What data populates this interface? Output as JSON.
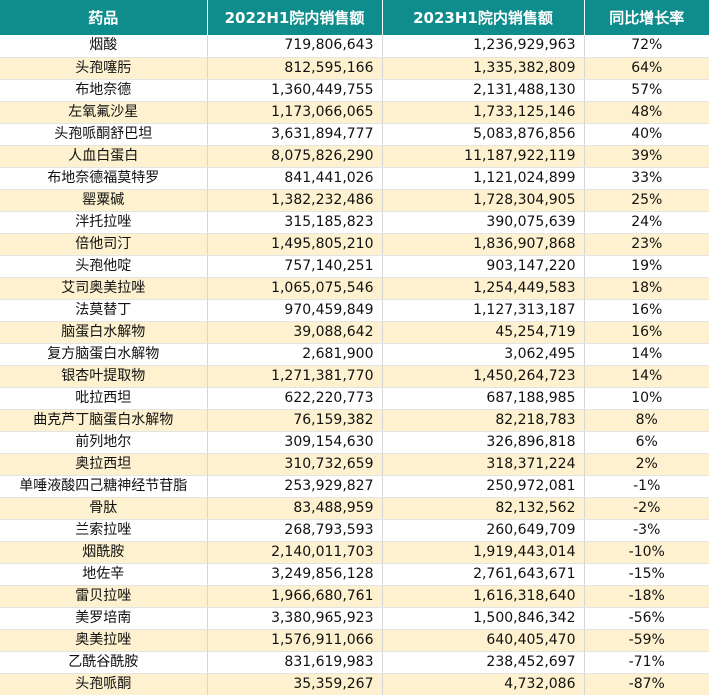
{
  "headers": {
    "drug": "药品",
    "sales_2022h1": "2022H1院内销售额",
    "sales_2023h1": "2023H1院内销售额",
    "yoy_growth": "同比增长率"
  },
  "colors": {
    "header_bg": "#0f8c8c",
    "header_text": "#ffffff",
    "row_alt_bg": "#fdf1cf",
    "row_bg": "#ffffff"
  },
  "rows": [
    {
      "drug": "烟酸",
      "h1_2022": "719,806,643",
      "h1_2023": "1,236,929,963",
      "growth": "72%"
    },
    {
      "drug": "头孢噻肟",
      "h1_2022": "812,595,166",
      "h1_2023": "1,335,382,809",
      "growth": "64%"
    },
    {
      "drug": "布地奈德",
      "h1_2022": "1,360,449,755",
      "h1_2023": "2,131,488,130",
      "growth": "57%"
    },
    {
      "drug": "左氧氟沙星",
      "h1_2022": "1,173,066,065",
      "h1_2023": "1,733,125,146",
      "growth": "48%"
    },
    {
      "drug": "头孢哌酮舒巴坦",
      "h1_2022": "3,631,894,777",
      "h1_2023": "5,083,876,856",
      "growth": "40%"
    },
    {
      "drug": "人血白蛋白",
      "h1_2022": "8,075,826,290",
      "h1_2023": "11,187,922,119",
      "growth": "39%"
    },
    {
      "drug": "布地奈德福莫特罗",
      "h1_2022": "841,441,026",
      "h1_2023": "1,121,024,899",
      "growth": "33%"
    },
    {
      "drug": "罂粟碱",
      "h1_2022": "1,382,232,486",
      "h1_2023": "1,728,304,905",
      "growth": "25%"
    },
    {
      "drug": "泮托拉唑",
      "h1_2022": "315,185,823",
      "h1_2023": "390,075,639",
      "growth": "24%"
    },
    {
      "drug": "倍他司汀",
      "h1_2022": "1,495,805,210",
      "h1_2023": "1,836,907,868",
      "growth": "23%"
    },
    {
      "drug": "头孢他啶",
      "h1_2022": "757,140,251",
      "h1_2023": "903,147,220",
      "growth": "19%"
    },
    {
      "drug": "艾司奥美拉唑",
      "h1_2022": "1,065,075,546",
      "h1_2023": "1,254,449,583",
      "growth": "18%"
    },
    {
      "drug": "法莫替丁",
      "h1_2022": "970,459,849",
      "h1_2023": "1,127,313,187",
      "growth": "16%"
    },
    {
      "drug": "脑蛋白水解物",
      "h1_2022": "39,088,642",
      "h1_2023": "45,254,719",
      "growth": "16%"
    },
    {
      "drug": "复方脑蛋白水解物",
      "h1_2022": "2,681,900",
      "h1_2023": "3,062,495",
      "growth": "14%"
    },
    {
      "drug": "银杏叶提取物",
      "h1_2022": "1,271,381,770",
      "h1_2023": "1,450,264,723",
      "growth": "14%"
    },
    {
      "drug": "吡拉西坦",
      "h1_2022": "622,220,773",
      "h1_2023": "687,188,985",
      "growth": "10%"
    },
    {
      "drug": "曲克芦丁脑蛋白水解物",
      "h1_2022": "76,159,382",
      "h1_2023": "82,218,783",
      "growth": "8%"
    },
    {
      "drug": "前列地尔",
      "h1_2022": "309,154,630",
      "h1_2023": "326,896,818",
      "growth": "6%"
    },
    {
      "drug": "奥拉西坦",
      "h1_2022": "310,732,659",
      "h1_2023": "318,371,224",
      "growth": "2%"
    },
    {
      "drug": "单唾液酸四己糖神经节苷脂",
      "h1_2022": "253,929,827",
      "h1_2023": "250,972,081",
      "growth": "-1%"
    },
    {
      "drug": "骨肽",
      "h1_2022": "83,488,959",
      "h1_2023": "82,132,562",
      "growth": "-2%"
    },
    {
      "drug": "兰索拉唑",
      "h1_2022": "268,793,593",
      "h1_2023": "260,649,709",
      "growth": "-3%"
    },
    {
      "drug": "烟酰胺",
      "h1_2022": "2,140,011,703",
      "h1_2023": "1,919,443,014",
      "growth": "-10%"
    },
    {
      "drug": "地佐辛",
      "h1_2022": "3,249,856,128",
      "h1_2023": "2,761,643,671",
      "growth": "-15%"
    },
    {
      "drug": "雷贝拉唑",
      "h1_2022": "1,966,680,761",
      "h1_2023": "1,616,318,640",
      "growth": "-18%"
    },
    {
      "drug": "美罗培南",
      "h1_2022": "3,380,965,923",
      "h1_2023": "1,500,846,342",
      "growth": "-56%"
    },
    {
      "drug": "奥美拉唑",
      "h1_2022": "1,576,911,066",
      "h1_2023": "640,405,470",
      "growth": "-59%"
    },
    {
      "drug": "乙酰谷酰胺",
      "h1_2022": "831,619,983",
      "h1_2023": "238,452,697",
      "growth": "-71%"
    },
    {
      "drug": "头孢哌酮",
      "h1_2022": "35,359,267",
      "h1_2023": "4,732,086",
      "growth": "-87%"
    }
  ]
}
